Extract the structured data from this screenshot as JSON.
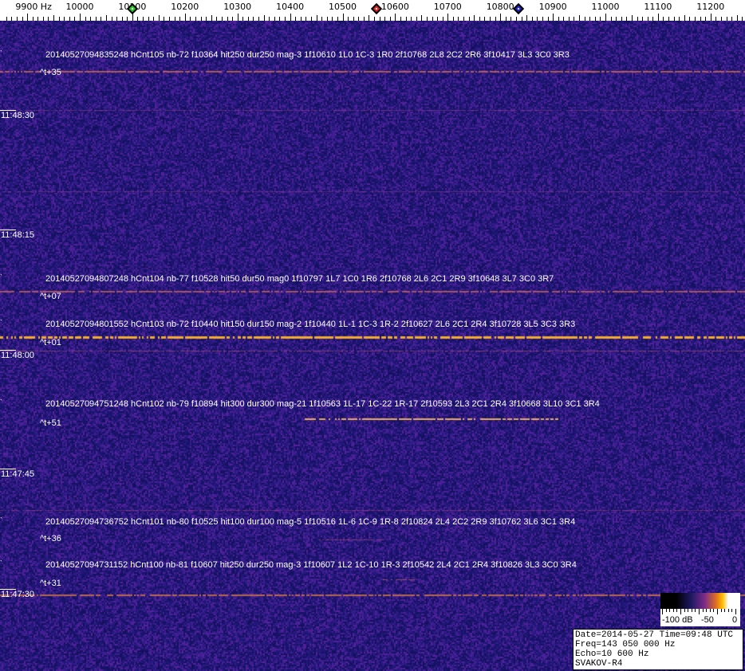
{
  "chart_data": {
    "type": "heatmap",
    "x_unit": "Hz",
    "x_ticks": [
      9900,
      10000,
      10100,
      10200,
      10300,
      10400,
      10500,
      10600,
      10700,
      10800,
      10900,
      11000,
      11100,
      11200
    ],
    "x_tick_labels": [
      "9900 Hz",
      "10000",
      "10100",
      "10200",
      "10300",
      "10400",
      "10500",
      "10600",
      "10700",
      "10800",
      "10900",
      "11000",
      "11100",
      "11200"
    ],
    "xlim": [
      9855,
      11260
    ],
    "y_ticks": [
      "11:48:30",
      "11:48:15",
      "11:48:00",
      "11:47:45",
      "11:47:30"
    ],
    "markers": [
      {
        "freq": 10100,
        "color": "#22cc22"
      },
      {
        "freq": 10565,
        "color": "#dd2222"
      },
      {
        "freq": 10835,
        "color": "#2222cc"
      }
    ],
    "colormap": [
      "#000000",
      "#1c1860",
      "#7a2a8a",
      "#e07020",
      "#ffc000",
      "#ffffff"
    ],
    "colorbar": {
      "labels": [
        "-100 dB",
        "-50",
        "0"
      ],
      "range_db": [
        -100,
        0
      ]
    },
    "annotations": [
      {
        "text": "20140527094835248 hCnt105 nb-72 f10364 hit250 dur250 mag-3 1f10610 1L0 1C-3 1R0 2f10768 2L8 2C2 2R6 3f10417 3L3 3C0 3R3",
        "offset": "^t+35"
      },
      {
        "text": "20140527094807248 hCnt104 nb-77 f10528 hit50 dur50 mag0 1f10797 1L7 1C0 1R6 2f10768 2L6 2C1 2R9 3f10648 3L7 3C0 3R7",
        "offset": "^t+07"
      },
      {
        "text": "20140527094801552 hCnt103 nb-72 f10440 hit150 dur150 mag-2 1f10440 1L-1 1C-3 1R-2 2f10627 2L6 2C1 2R4 3f10728 3L5 3C3 3R3",
        "offset": "^t+01"
      },
      {
        "text": "20140527094751248 hCnt102 nb-79 f10894 hit300 dur300 mag-21 1f10563 1L-17 1C-22 1R-17 2f10593 2L3 2C1 2R4 3f10668 3L10 3C1 3R4",
        "offset": "^t+51"
      },
      {
        "text": "20140527094736752 hCnt101 nb-80 f10525 hit100 dur100 mag-5 1f10516 1L-6 1C-9 1R-8 2f10824 2L4 2C2 2R9 3f10762 3L6 3C1 3R4",
        "offset": "^t+36"
      },
      {
        "text": "20140527094731152 hCnt100 nb-81 f10607 hit250 dur250 mag-3 1f10607 1L2 1C-10 1R-3 2f10542 2L4 2C1 2R4 3f10826 3L3 3C0 3R4",
        "offset": "^t+31"
      }
    ]
  },
  "info": {
    "date_time": "Date=2014-05-27 Time=09:48 UTC",
    "freq": "Freq=143 050 000 Hz",
    "echo": "Echo=10 600 Hz",
    "station": "SVAKOV-R4"
  }
}
